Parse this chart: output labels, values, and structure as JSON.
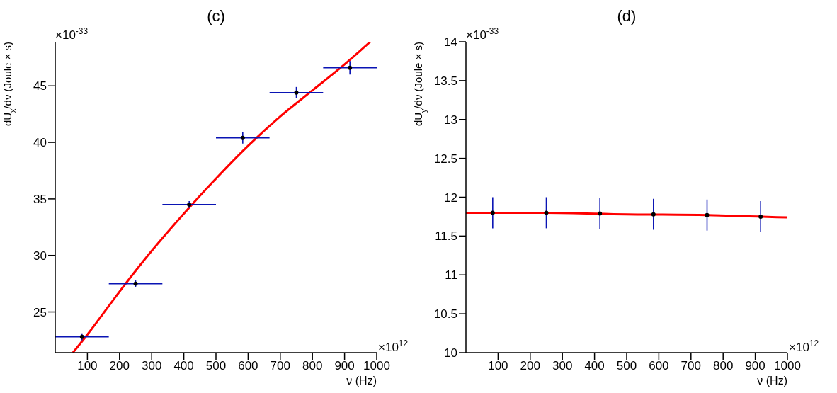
{
  "chart_data": [
    {
      "type": "scatter",
      "title": "(c)",
      "xlabel": "ν (Hz)",
      "ylabel": "dU$_{x}$/dν (Joule × s)",
      "annotations": [
        "×10$^{-33}$",
        "×10$^{12}$"
      ],
      "xlim": [
        0,
        1000
      ],
      "xticks": [
        100,
        200,
        300,
        400,
        500,
        600,
        700,
        800,
        900,
        1000
      ],
      "ylim": [
        21.4,
        48.9
      ],
      "yticks": [
        25,
        30,
        35,
        40,
        45
      ],
      "grid": false,
      "legend": false,
      "series": [
        {
          "marker": "circle",
          "color": "#000000",
          "x": [
            83.3,
            250,
            416.7,
            583.3,
            750,
            916.7
          ],
          "values": [
            22.8,
            27.5,
            34.5,
            40.4,
            44.4,
            46.6
          ],
          "errors": [
            0.3,
            0.3,
            0.3,
            0.5,
            0.5,
            0.6
          ],
          "xerrors": [
            83.3,
            83.3,
            83.3,
            83.3,
            83.3,
            83.3
          ]
        },
        {
          "type": "line",
          "marker": "none",
          "color": "#ff0000",
          "x": [
            55,
            100,
            200,
            300,
            400,
            500,
            600,
            700,
            800,
            900,
            980
          ],
          "values": [
            21.4,
            23.0,
            26.8,
            30.4,
            33.7,
            36.8,
            39.7,
            42.3,
            44.6,
            46.9,
            48.9
          ]
        }
      ]
    },
    {
      "type": "scatter",
      "title": "(d)",
      "xlabel": "ν (Hz)",
      "ylabel": "dU$_{y}$/dν (Joule × s)",
      "annotations": [
        "×10$^{-33}$",
        "×10$^{12}$"
      ],
      "xlim": [
        0,
        1000
      ],
      "xticks": [
        100,
        200,
        300,
        400,
        500,
        600,
        700,
        800,
        900,
        1000
      ],
      "ylim": [
        10,
        14
      ],
      "yticks": [
        10,
        10.5,
        11,
        11.5,
        12,
        12.5,
        13,
        13.5,
        14
      ],
      "grid": false,
      "legend": false,
      "series": [
        {
          "marker": "circle",
          "color": "#000000",
          "x": [
            83.3,
            250,
            416.7,
            583.3,
            750,
            916.7
          ],
          "values": [
            11.8,
            11.8,
            11.79,
            11.78,
            11.77,
            11.75
          ],
          "errors": [
            0.2,
            0.2,
            0.2,
            0.2,
            0.2,
            0.2
          ]
        },
        {
          "type": "line",
          "marker": "none",
          "color": "#ff0000",
          "x": [
            0,
            250,
            500,
            750,
            1000
          ],
          "values": [
            11.8,
            11.8,
            11.78,
            11.77,
            11.74
          ]
        }
      ]
    }
  ]
}
